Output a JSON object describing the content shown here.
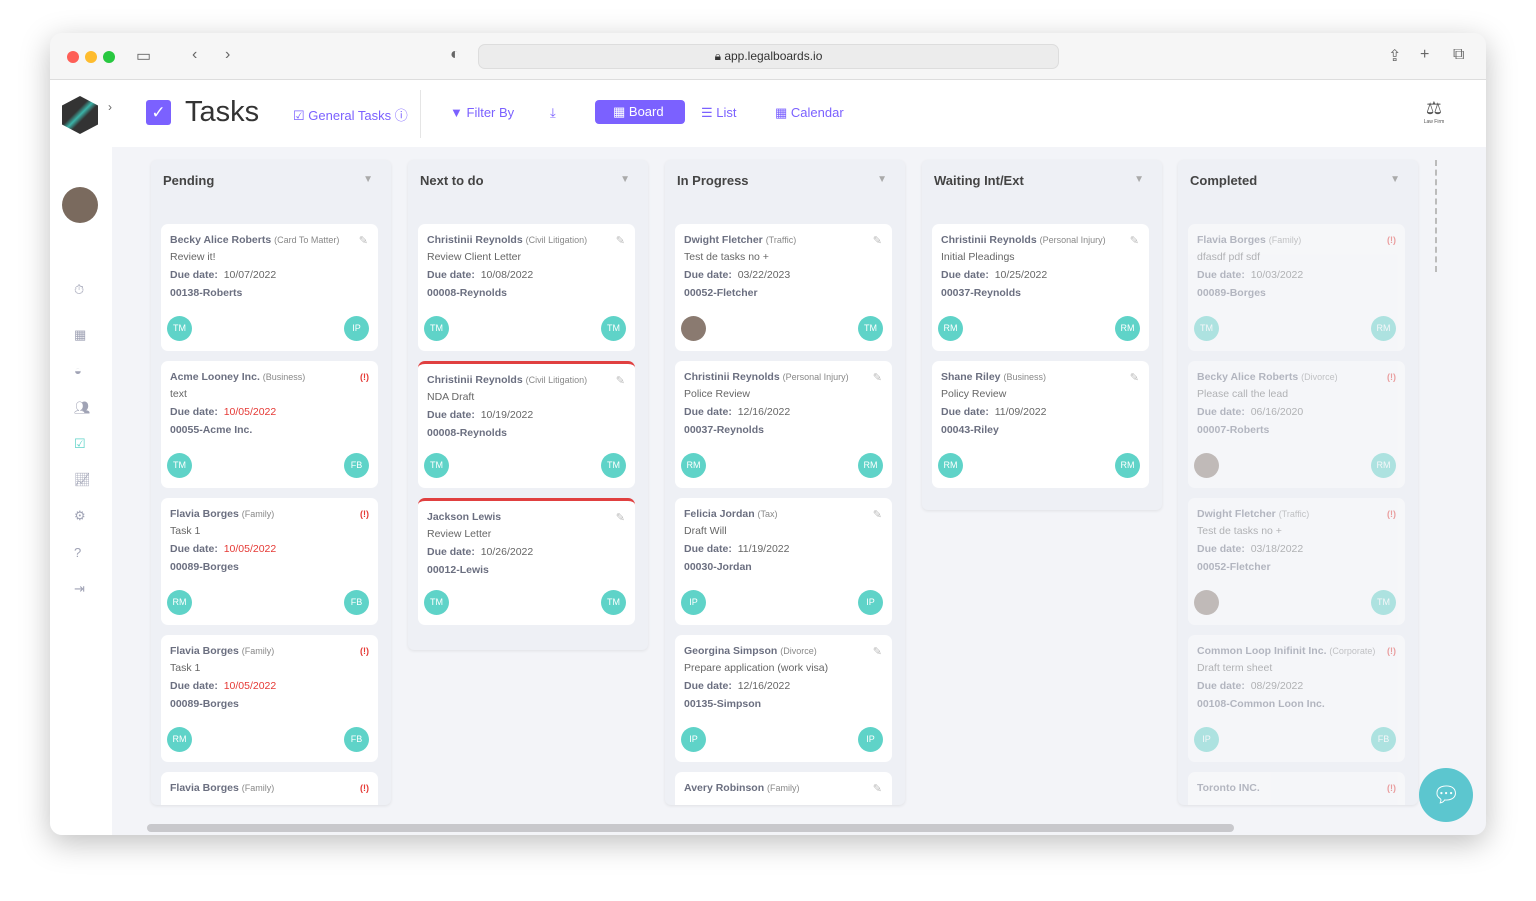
{
  "browser": {
    "url": "app.legalboards.io"
  },
  "header": {
    "title": "Tasks",
    "general_tasks": "General Tasks",
    "filter": "Filter By",
    "board": "Board",
    "list": "List",
    "calendar": "Calendar",
    "firm_logo": "Law Firm"
  },
  "labels": {
    "due": "Due date:"
  },
  "colors": {
    "accent": "#7b61ff",
    "avatar": "#5fd3c8",
    "overdue": "#e53935"
  },
  "columns": [
    {
      "title": "Pending",
      "cards": [
        {
          "name": "Becky Alice Roberts",
          "type": "(Card To Matter)",
          "task": "Review it!",
          "due": "10/07/2022",
          "matter": "00138-Roberts",
          "a": "TM",
          "b": "IP"
        },
        {
          "name": "Acme Looney Inc.",
          "type": "(Business)",
          "task": "text",
          "due": "10/05/2022",
          "overdue": true,
          "matter": "00055-Acme Inc.",
          "a": "TM",
          "b": "FB"
        },
        {
          "name": "Flavia Borges",
          "type": "(Family)",
          "task": "Task 1",
          "due": "10/05/2022",
          "overdue": true,
          "matter": "00089-Borges",
          "a": "RM",
          "b": "FB"
        },
        {
          "name": "Flavia Borges",
          "type": "(Family)",
          "task": "Task 1",
          "due": "10/05/2022",
          "overdue": true,
          "matter": "00089-Borges",
          "a": "RM",
          "b": "FB"
        },
        {
          "name": "Flavia Borges",
          "type": "(Family)",
          "overdue": true,
          "partial": true
        }
      ]
    },
    {
      "title": "Next to do",
      "cards": [
        {
          "name": "Christinii Reynolds",
          "type": "(Civil Litigation)",
          "task": "Review Client Letter",
          "due": "10/08/2022",
          "matter": "00008-Reynolds",
          "a": "TM",
          "b": "TM"
        },
        {
          "name": "Christinii Reynolds",
          "type": "(Civil Litigation)",
          "task": "NDA Draft",
          "due": "10/19/2022",
          "matter": "00008-Reynolds",
          "a": "TM",
          "b": "TM",
          "flag": true
        },
        {
          "name": "Jackson Lewis",
          "type": "",
          "task": "Review Letter",
          "due": "10/26/2022",
          "matter": "00012-Lewis",
          "a": "TM",
          "b": "TM",
          "flag": true
        }
      ]
    },
    {
      "title": "In Progress",
      "cards": [
        {
          "name": "Dwight Fletcher",
          "type": "(Traffic)",
          "task": "Test de tasks no +",
          "due": "03/22/2023",
          "matter": "00052-Fletcher",
          "a": "photo",
          "b": "TM"
        },
        {
          "name": "Christinii Reynolds",
          "type": "(Personal Injury)",
          "task": "Police Review",
          "due": "12/16/2022",
          "matter": "00037-Reynolds",
          "a": "RM",
          "b": "RM"
        },
        {
          "name": "Felicia Jordan",
          "type": "(Tax)",
          "task": "Draft Will",
          "due": "11/19/2022",
          "matter": "00030-Jordan",
          "a": "IP",
          "b": "IP"
        },
        {
          "name": "Georgina Simpson",
          "type": "(Divorce)",
          "task": "Prepare application (work visa)",
          "due": "12/16/2022",
          "matter": "00135-Simpson",
          "a": "IP",
          "b": "IP"
        },
        {
          "name": "Avery Robinson",
          "type": "(Family)",
          "partial": true
        }
      ]
    },
    {
      "title": "Waiting Int/Ext",
      "cards": [
        {
          "name": "Christinii Reynolds",
          "type": "(Personal Injury)",
          "task": "Initial Pleadings",
          "due": "10/25/2022",
          "matter": "00037-Reynolds",
          "a": "RM",
          "b": "RM"
        },
        {
          "name": "Shane Riley",
          "type": "(Business)",
          "task": "Policy Review",
          "due": "11/09/2022",
          "matter": "00043-Riley",
          "a": "RM",
          "b": "RM"
        }
      ]
    },
    {
      "title": "Completed",
      "faded": true,
      "cards": [
        {
          "name": "Flavia Borges",
          "type": "(Family)",
          "task": "dfasdf pdf sdf",
          "due": "10/03/2022",
          "overdue": true,
          "matter": "00089-Borges",
          "a": "TM",
          "b": "RM"
        },
        {
          "name": "Becky Alice Roberts",
          "type": "(Divorce)",
          "task": "Please call the lead",
          "due": "06/16/2020",
          "overdue": true,
          "matter": "00007-Roberts",
          "a": "photo",
          "b": "RM"
        },
        {
          "name": "Dwight Fletcher",
          "type": "(Traffic)",
          "task": "Test de tasks no +",
          "due": "03/18/2022",
          "overdue": true,
          "matter": "00052-Fletcher",
          "a": "photo",
          "b": "TM"
        },
        {
          "name": "Common Loop Inifinit Inc.",
          "type": "(Corporate)",
          "task": "Draft term sheet",
          "due": "08/29/2022",
          "overdue": true,
          "matter": "00108-Common Loon Inc.",
          "a": "IP",
          "b": "FB"
        },
        {
          "name": "Toronto INC.",
          "type": "",
          "overdue": true,
          "partial": true
        }
      ]
    }
  ]
}
